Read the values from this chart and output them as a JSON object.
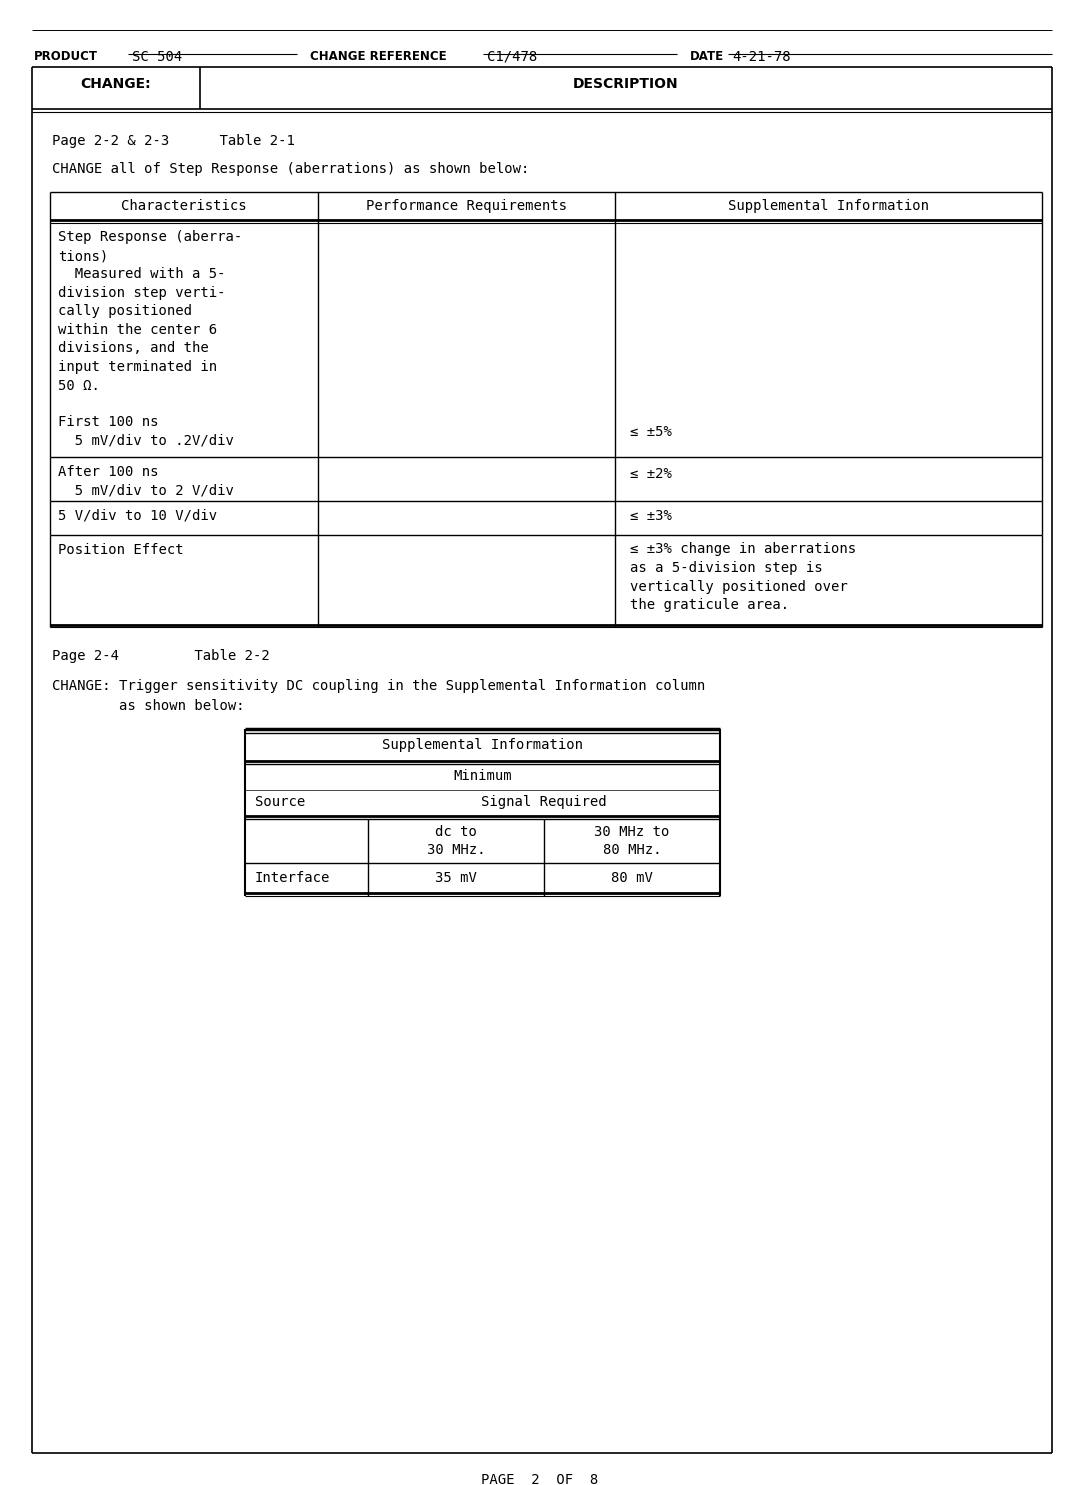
{
  "bg_color": "#ffffff",
  "text_color": "#000000",
  "product_label": "PRODUCT",
  "product_val": "SC 504",
  "change_ref_label": "CHANGE REFERENCE",
  "change_ref_val": "C1/478",
  "date_label": "DATE",
  "date_val": "4-21-78",
  "col_change": "CHANGE:",
  "col_description": "DESCRIPTION",
  "page1_ref": "Page 2-2 & 2-3      Table 2-1",
  "page1_change": "CHANGE all of Step Response (aberrations) as shown below:",
  "t1_headers": [
    "Characteristics",
    "Performance Requirements",
    "Supplemental Information"
  ],
  "t1_r1_col1": [
    "Step Response (aberra-",
    "tions)",
    "  Measured with a 5-",
    "division step verti-",
    "cally positioned",
    "within the center 6",
    "divisions, and the",
    "input terminated in",
    "50 Ω.",
    "",
    "First 100 ns",
    "  5 mV/div to .2V/div"
  ],
  "t1_r1_col3": "≤ ±5%",
  "t1_r2_col1": [
    "After 100 ns",
    "  5 mV/div to 2 V/div"
  ],
  "t1_r2_col3": "≤ ±2%",
  "t1_r3_col1": "5 V/div to 10 V/div",
  "t1_r3_col3": "≤ ±3%",
  "t1_r4_col1": "Position Effect",
  "t1_r4_col3": [
    "≤ ±3% change in aberrations",
    "as a 5-division step is",
    "vertically positioned over",
    "the graticule area."
  ],
  "page2_ref_line": "Page 2-4         Table 2-2",
  "page2_change_line1": "CHANGE: Trigger sensitivity DC coupling in the Supplemental Information column",
  "page2_change_line2": "        as shown below:",
  "t2_title": "Supplemental Information",
  "t2_minimum": "Minimum",
  "t2_source": "Source",
  "t2_signal": "Signal Required",
  "t2_dc_to": "dc to",
  "t2_30mhz": "30 MHz.",
  "t2_30mhz_to": "30 MHz to",
  "t2_80mhz": "80 MHz.",
  "t2_interface": "Interface",
  "t2_35mv": "35 mV",
  "t2_80mv": "80 mV",
  "footer": "PAGE  2  OF  8"
}
